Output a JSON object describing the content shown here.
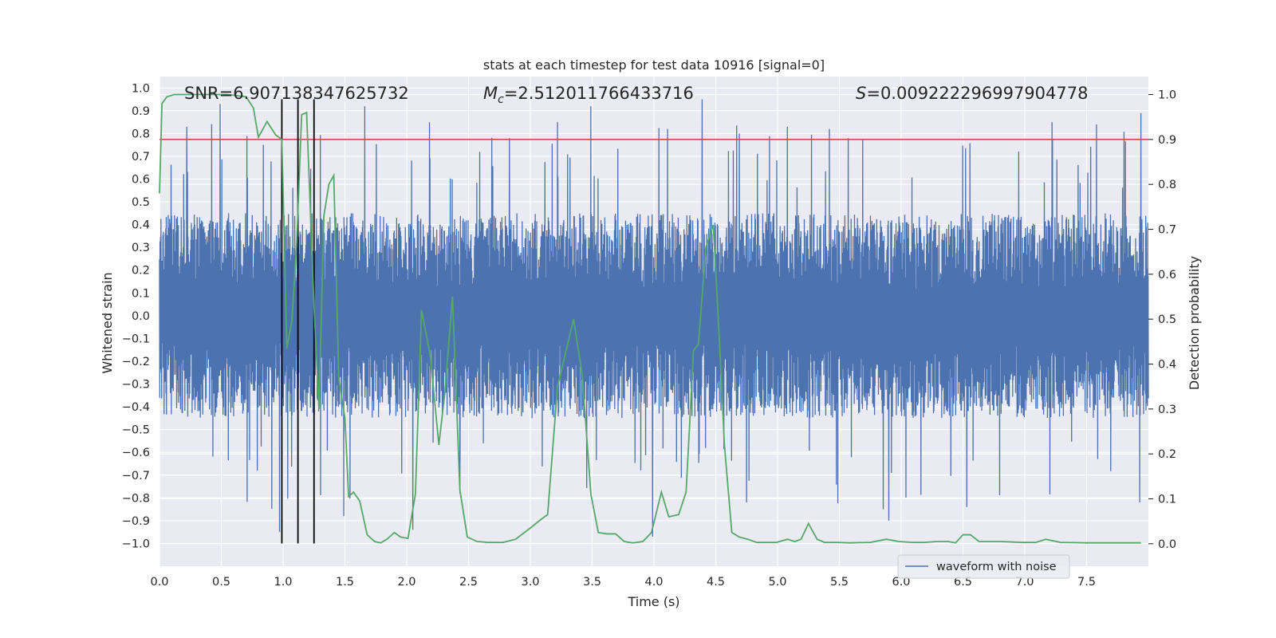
{
  "chart_data": {
    "type": "line",
    "title": "stats at each timestep for test data 10916 [signal=0]",
    "xlabel": "Time (s)",
    "ylabel": "Whitened strain",
    "ylabel_right": "Detection probability",
    "xlim": [
      0.0,
      8.0
    ],
    "ylim": [
      -1.1,
      1.05
    ],
    "ylim_right": [
      -0.05,
      1.04
    ],
    "x_ticks": [
      "0.0",
      "0.5",
      "1.0",
      "1.5",
      "2.0",
      "2.5",
      "3.0",
      "3.5",
      "4.0",
      "4.5",
      "5.0",
      "5.5",
      "6.0",
      "6.5",
      "7.0",
      "7.5"
    ],
    "x_tick_values": [
      0.0,
      0.5,
      1.0,
      1.5,
      2.0,
      2.5,
      3.0,
      3.5,
      4.0,
      4.5,
      5.0,
      5.5,
      6.0,
      6.5,
      7.0,
      7.5
    ],
    "y_ticks": [
      "1.0",
      "0.9",
      "0.8",
      "0.7",
      "0.6",
      "0.5",
      "0.4",
      "0.3",
      "0.2",
      "0.1",
      "0.0",
      "-0.1",
      "-0.2",
      "-0.3",
      "-0.4",
      "-0.5",
      "-0.6",
      "-0.7",
      "-0.8",
      "-0.9",
      "-1.0"
    ],
    "y_tick_values": [
      1.0,
      0.9,
      0.8,
      0.7,
      0.6,
      0.5,
      0.4,
      0.3,
      0.2,
      0.1,
      0.0,
      -0.1,
      -0.2,
      -0.3,
      -0.4,
      -0.5,
      -0.6,
      -0.7,
      -0.8,
      -0.9,
      -1.0
    ],
    "y2_ticks": [
      "1.0",
      "0.9",
      "0.8",
      "0.7",
      "0.6",
      "0.5",
      "0.4",
      "0.3",
      "0.2",
      "0.1",
      "0.0"
    ],
    "y2_tick_values": [
      1.0,
      0.9,
      0.8,
      0.7,
      0.6,
      0.5,
      0.4,
      0.3,
      0.2,
      0.1,
      0.0
    ],
    "threshold": 0.9,
    "vlines": [
      0.99,
      1.12,
      1.25
    ],
    "vline_range": [
      -1.0,
      0.95
    ],
    "annotations": {
      "snr": "SNR=6.907138347625732",
      "mc_symbol": "M",
      "mc_sub": "c",
      "mc_value": "=2.512011766433716",
      "s_symbol": "S",
      "s_value": "=0.009222296997904778"
    },
    "legend": {
      "position": "lower-center-right",
      "entries": [
        "waveform with noise"
      ]
    },
    "waveform": {
      "name": "waveform with noise",
      "n_samples": 4096,
      "duration": 8.0,
      "envelope": [
        -0.45,
        0.45
      ],
      "peaks": [
        {
          "x": 0.22,
          "y": 0.83
        },
        {
          "x": 0.49,
          "y": 0.93
        },
        {
          "x": 0.84,
          "y": 0.75
        },
        {
          "x": 1.66,
          "y": 0.92
        },
        {
          "x": 2.05,
          "y": -0.94
        },
        {
          "x": 2.59,
          "y": 0.72
        },
        {
          "x": 2.83,
          "y": 0.78
        },
        {
          "x": 3.22,
          "y": 0.85
        },
        {
          "x": 3.49,
          "y": 0.92
        },
        {
          "x": 3.99,
          "y": -0.97
        },
        {
          "x": 4.11,
          "y": 0.82
        },
        {
          "x": 4.39,
          "y": 0.95
        },
        {
          "x": 4.69,
          "y": 0.8
        },
        {
          "x": 5.08,
          "y": 0.83
        },
        {
          "x": 5.42,
          "y": 0.82
        },
        {
          "x": 5.9,
          "y": -0.9
        },
        {
          "x": 6.53,
          "y": -0.84
        },
        {
          "x": 7.22,
          "y": 0.85
        },
        {
          "x": 7.58,
          "y": 0.84
        },
        {
          "x": 7.94,
          "y": 0.89
        },
        {
          "x": 0.97,
          "y": -0.95
        },
        {
          "x": 1.49,
          "y": -0.88
        },
        {
          "x": 2.43,
          "y": -0.78
        },
        {
          "x": 4.75,
          "y": -0.82
        },
        {
          "x": 7.93,
          "y": -0.82
        }
      ]
    },
    "series": [
      {
        "name": "detection probability",
        "axis": "right",
        "x": [
          0.0,
          0.02,
          0.06,
          0.12,
          0.3,
          0.55,
          0.7,
          0.76,
          0.8,
          0.87,
          0.94,
          0.99,
          1.03,
          1.07,
          1.11,
          1.15,
          1.19,
          1.25,
          1.29,
          1.33,
          1.37,
          1.41,
          1.45,
          1.5,
          1.53,
          1.57,
          1.62,
          1.68,
          1.74,
          1.79,
          1.84,
          1.9,
          1.95,
          2.01,
          2.07,
          2.12,
          2.19,
          2.26,
          2.31,
          2.37,
          2.43,
          2.49,
          2.57,
          2.66,
          2.73,
          2.78,
          2.88,
          3.0,
          3.09,
          3.14,
          3.22,
          3.35,
          3.42,
          3.49,
          3.55,
          3.62,
          3.69,
          3.76,
          3.83,
          3.91,
          3.98,
          4.06,
          4.12,
          4.2,
          4.26,
          4.32,
          4.36,
          4.42,
          4.48,
          4.53,
          4.57,
          4.63,
          4.69,
          4.76,
          4.83,
          4.91,
          4.99,
          5.08,
          5.14,
          5.19,
          5.25,
          5.32,
          5.38,
          5.48,
          5.58,
          5.75,
          5.88,
          5.98,
          6.09,
          6.19,
          6.29,
          6.38,
          6.44,
          6.5,
          6.56,
          6.63,
          6.69,
          6.8,
          6.98,
          7.09,
          7.17,
          7.29,
          7.5,
          7.94
        ],
        "values": [
          0.78,
          0.98,
          0.995,
          1.0,
          1.0,
          1.0,
          0.995,
          0.97,
          0.905,
          0.94,
          0.91,
          0.9,
          0.435,
          0.495,
          0.67,
          0.955,
          0.96,
          0.53,
          0.3,
          0.73,
          0.8,
          0.82,
          0.37,
          0.28,
          0.105,
          0.115,
          0.095,
          0.02,
          0.005,
          0.002,
          0.01,
          0.025,
          0.015,
          0.012,
          0.11,
          0.52,
          0.42,
          0.22,
          0.34,
          0.55,
          0.12,
          0.015,
          0.005,
          0.003,
          0.003,
          0.003,
          0.01,
          0.035,
          0.055,
          0.065,
          0.35,
          0.5,
          0.375,
          0.11,
          0.025,
          0.022,
          0.022,
          0.005,
          0.002,
          0.005,
          0.025,
          0.115,
          0.06,
          0.065,
          0.115,
          0.43,
          0.445,
          0.66,
          0.71,
          0.45,
          0.22,
          0.025,
          0.015,
          0.01,
          0.003,
          0.003,
          0.003,
          0.01,
          0.005,
          0.01,
          0.045,
          0.01,
          0.003,
          0.003,
          0.002,
          0.003,
          0.01,
          0.005,
          0.003,
          0.003,
          0.005,
          0.005,
          0.002,
          0.02,
          0.02,
          0.005,
          0.005,
          0.005,
          0.003,
          0.003,
          0.01,
          0.003,
          0.002,
          0.002
        ]
      }
    ],
    "colors": {
      "background": "#eaeaf2",
      "grid": "#ffffff",
      "waveform": "#4c72b0",
      "probability": "#55a868",
      "threshold": "#c44e52",
      "vline": "#000000"
    }
  }
}
